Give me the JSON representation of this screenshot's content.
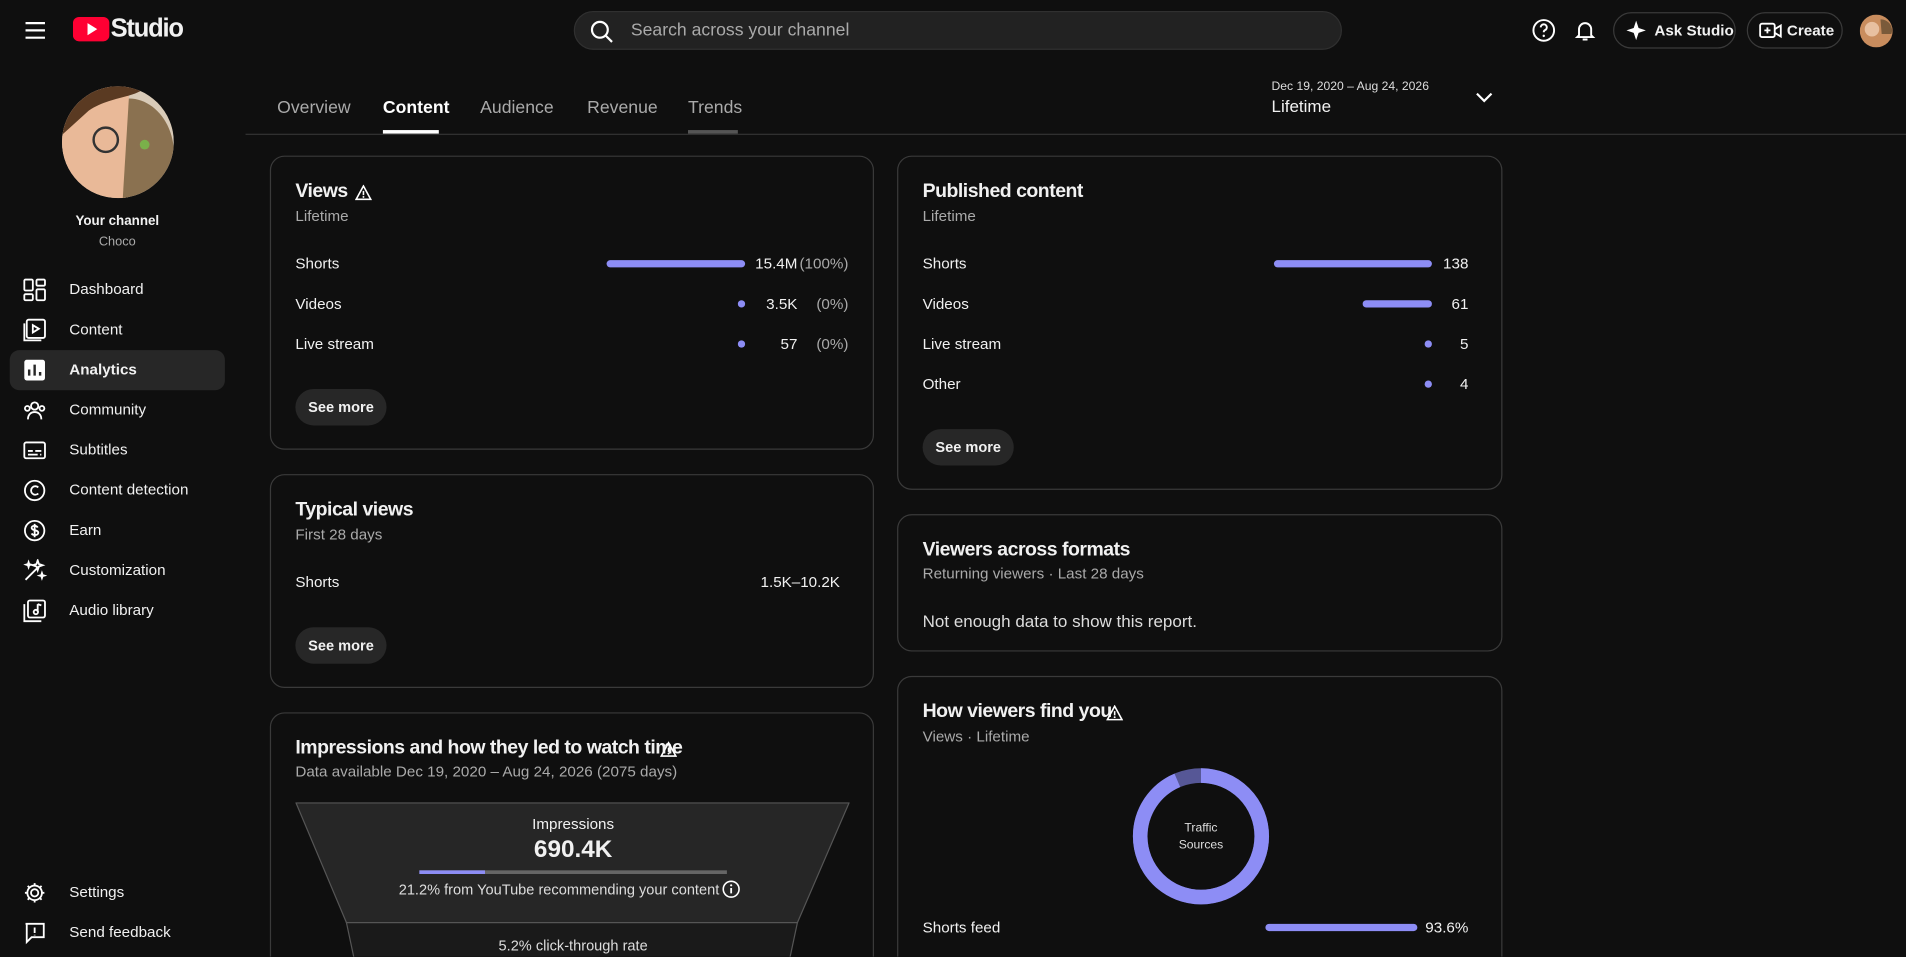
{
  "header": {
    "logo": "Studio",
    "search_placeholder": "Search across your channel",
    "ask_button": "Ask Studio",
    "create_button": "Create"
  },
  "sidebar": {
    "channel_label": "Your channel",
    "channel_name": "Choco",
    "nav": [
      "Dashboard",
      "Content",
      "Analytics",
      "Community",
      "Subtitles",
      "Content detection",
      "Earn",
      "Customization",
      "Audio library"
    ],
    "bottom": [
      "Settings",
      "Send feedback"
    ]
  },
  "tabs": [
    "Overview",
    "Content",
    "Audience",
    "Revenue",
    "Trends"
  ],
  "date_range": {
    "range": "Dec 19, 2020 – Aug 24, 2026",
    "period": "Lifetime"
  },
  "cards": {
    "views": {
      "title": "Views",
      "subtitle": "Lifetime",
      "button": "See more",
      "rows": [
        {
          "label": "Shorts",
          "value": "15.4M",
          "share": {
            "value": 100,
            "label": "(100%)"
          }
        },
        {
          "label": "Videos",
          "value": "3.5K",
          "share": {
            "value": 0,
            "label": "(0%)"
          }
        },
        {
          "label": "Live stream",
          "value": 57,
          "share": {
            "value": 0,
            "label": "(0%)"
          }
        }
      ]
    },
    "typical_views": {
      "title": "Typical views",
      "subtitle": "First 28 days",
      "button": "See more",
      "rows": [
        {
          "label": "Shorts",
          "value": "1.5K–10.2K"
        }
      ]
    },
    "impressions": {
      "title": "Impressions and how they led to watch time",
      "subtitle": "Data available Dec 19, 2020 – Aug 24, 2026 (2075 days)",
      "metric_label": "Impressions",
      "metric_value": "690.4K",
      "recommended_share": {
        "value": 21.2,
        "label": "21.2% from YouTube recommending your content"
      },
      "ctr": "5.2% click-through rate"
    },
    "published": {
      "title": "Published content",
      "subtitle": "Lifetime",
      "button": "See more",
      "rows": [
        {
          "label": "Shorts",
          "value": 138
        },
        {
          "label": "Videos",
          "value": 61
        },
        {
          "label": "Live stream",
          "value": 5
        },
        {
          "label": "Other",
          "value": 4
        }
      ]
    },
    "viewers_formats": {
      "title": "Viewers across formats",
      "subtitle": "Returning viewers · Last 28 days",
      "message": "Not enough data to show this report."
    },
    "traffic": {
      "title": "How viewers find you",
      "subtitle": "Views · Lifetime",
      "center_label": [
        "Traffic",
        "Sources"
      ],
      "rows": [
        {
          "label": "Shorts feed",
          "value": 93.6,
          "value_label": "93.6%"
        }
      ]
    }
  }
}
